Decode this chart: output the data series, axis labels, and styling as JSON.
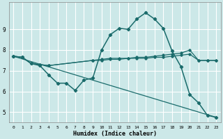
{
  "xlabel": "Humidex (Indice chaleur)",
  "bg_color": "#cce8e8",
  "grid_color": "#ffffff",
  "line_color": "#1a6b6b",
  "xlim_min": -0.5,
  "xlim_max": 23.5,
  "ylim_min": 4.5,
  "ylim_max": 10.3,
  "yticks": [
    5,
    6,
    7,
    8,
    9
  ],
  "xticks": [
    0,
    1,
    2,
    3,
    4,
    5,
    6,
    7,
    8,
    9,
    10,
    11,
    12,
    13,
    14,
    15,
    16,
    17,
    18,
    19,
    20,
    21,
    22,
    23
  ],
  "line1_x": [
    0,
    1,
    2,
    3,
    4,
    5,
    6,
    7,
    8,
    9,
    10,
    11,
    12,
    13,
    14,
    15,
    16,
    17,
    18,
    19,
    20,
    21,
    22,
    23
  ],
  "line1_y": [
    7.7,
    7.65,
    7.35,
    7.25,
    6.8,
    6.4,
    6.4,
    6.05,
    6.55,
    6.65,
    8.0,
    8.75,
    9.05,
    9.0,
    9.5,
    9.8,
    9.5,
    9.05,
    7.95,
    7.2,
    5.85,
    5.45,
    4.85,
    4.75
  ],
  "line2_x": [
    0,
    1,
    2,
    3,
    4,
    9,
    10,
    11,
    12,
    13,
    14,
    15,
    16,
    17,
    18,
    19,
    20,
    21,
    22,
    23
  ],
  "line2_y": [
    7.7,
    7.65,
    7.35,
    7.3,
    7.25,
    7.5,
    7.55,
    7.6,
    7.6,
    7.6,
    7.65,
    7.65,
    7.7,
    7.75,
    7.8,
    7.85,
    8.0,
    7.5,
    7.5,
    7.5
  ],
  "line3_x": [
    0,
    1,
    2,
    3,
    4,
    9,
    10,
    11,
    12,
    13,
    14,
    15,
    16,
    17,
    18,
    19,
    20,
    21,
    22,
    23
  ],
  "line3_y": [
    7.7,
    7.65,
    7.35,
    7.3,
    7.25,
    7.5,
    7.5,
    7.55,
    7.55,
    7.6,
    7.6,
    7.6,
    7.65,
    7.65,
    7.7,
    7.75,
    7.8,
    7.5,
    7.5,
    7.5
  ],
  "line4_x": [
    0,
    23
  ],
  "line4_y": [
    7.7,
    4.75
  ]
}
